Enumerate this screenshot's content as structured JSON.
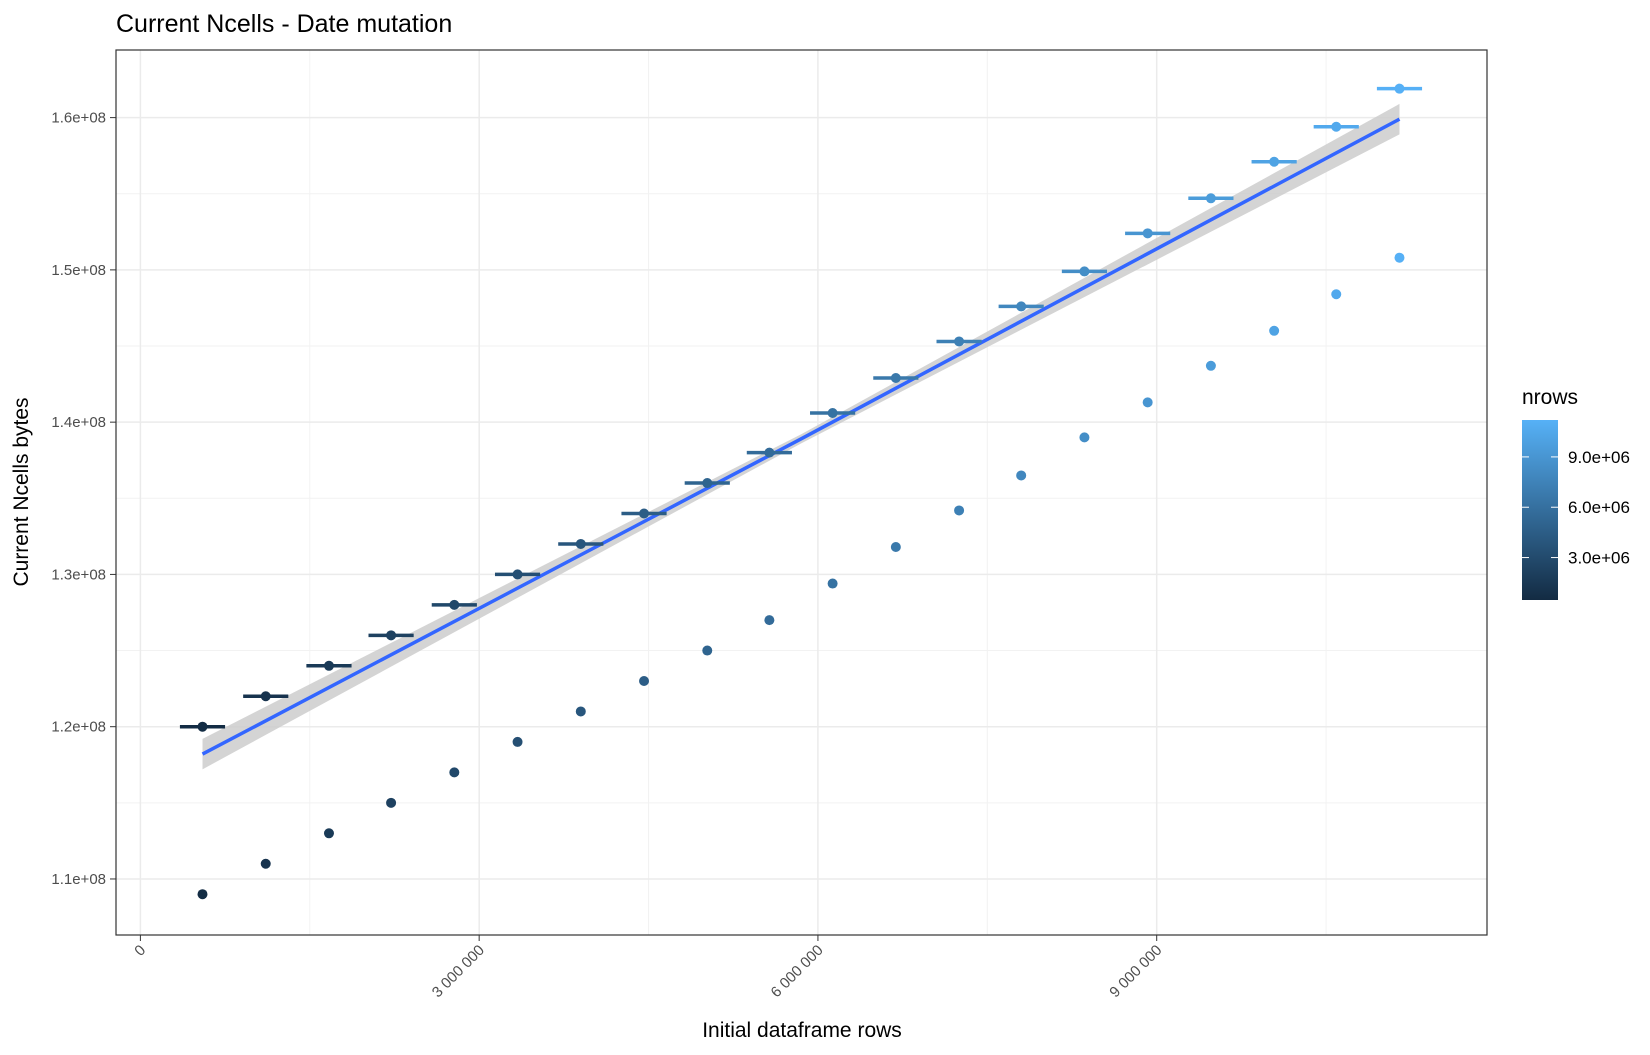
{
  "chart_data": {
    "type": "scatter",
    "title": "Current Ncells - Date mutation",
    "x_label": "Initial dataframe rows",
    "y_label": "Current Ncells bytes",
    "x": [
      550000,
      1110000,
      1670000,
      2220000,
      2780000,
      3340000,
      3900000,
      4460000,
      5020000,
      5570000,
      6130000,
      6690000,
      7250000,
      7800000,
      8360000,
      8920000,
      9480000,
      10040000,
      10590000,
      11150000
    ],
    "series": [
      {
        "values": [
          120000000,
          122000000,
          124000000,
          126000000,
          128000000,
          130000000,
          132000000,
          134000000,
          136000000,
          138000000,
          140600000,
          142900000,
          145300000,
          147600000,
          149900000,
          152400000,
          154700000,
          157100000,
          159400000,
          161900000
        ],
        "xerr": 200000
      },
      {
        "values": [
          109000000,
          111000000,
          113000000,
          115000000,
          117000000,
          119000000,
          121000000,
          123000000,
          125000000,
          127000000,
          129400000,
          131800000,
          134200000,
          136500000,
          139000000,
          141300000,
          143700000,
          146000000,
          148400000,
          150800000
        ]
      }
    ],
    "fit": {
      "color": "#3366FF",
      "band_color": "#cccccc",
      "x": [
        550000,
        5850000,
        11150000
      ],
      "y": [
        118200000,
        138900000,
        159900000
      ],
      "ymin": [
        117200000,
        138600000,
        158900000
      ],
      "ymax": [
        119200000,
        139200000,
        160900000
      ]
    },
    "colorbar": {
      "title": "nrows",
      "low": "#132B43",
      "high": "#56B1F7",
      "lim": [
        470000,
        11200000
      ],
      "ticks": [
        {
          "value": 3000000,
          "label": "3.0e+06"
        },
        {
          "value": 6000000,
          "label": "6.0e+06"
        },
        {
          "value": 9000000,
          "label": "9.0e+06"
        }
      ]
    },
    "xlim": [
      -216000,
      11925000
    ],
    "ylim": [
      106320000,
      164440000
    ],
    "xticks": [
      0,
      {
        "value": 3000000,
        "label": "3 000 000"
      },
      {
        "value": 6000000,
        "label": "6 000 000"
      },
      {
        "value": 9000000,
        "label": "9 000 000"
      }
    ],
    "yticks": [
      {
        "value": 110000000,
        "label": "1.1e+08"
      },
      {
        "value": 120000000,
        "label": "1.2e+08"
      },
      {
        "value": 130000000,
        "label": "1.3e+08"
      },
      {
        "value": 140000000,
        "label": "1.4e+08"
      },
      {
        "value": 150000000,
        "label": "1.5e+08"
      },
      {
        "value": 160000000,
        "label": "1.6e+08"
      }
    ],
    "xminor": [
      1500000,
      4500000,
      7500000,
      10500000
    ],
    "yminor": [
      115000000,
      125000000,
      135000000,
      145000000,
      155000000
    ],
    "grid": true
  }
}
